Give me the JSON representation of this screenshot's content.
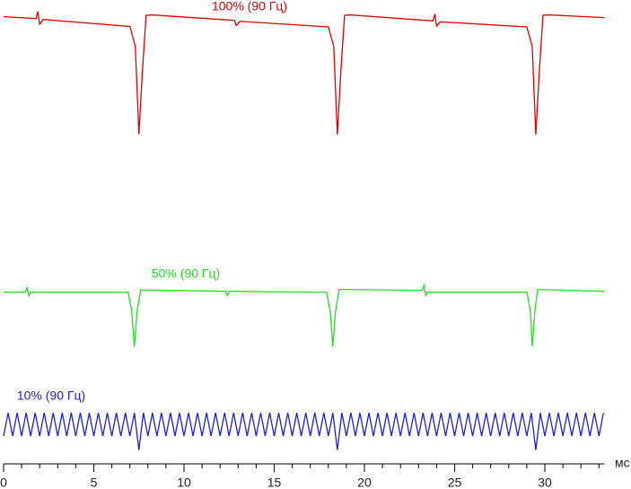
{
  "chart_data": {
    "type": "line",
    "xlabel": "мс",
    "xlim": [
      0,
      33.3
    ],
    "ylim": [
      0,
      100
    ],
    "xticks": [
      0,
      5,
      10,
      15,
      20,
      25,
      30
    ],
    "series": [
      {
        "name": "100% (90 Гц)",
        "color": "#e00000",
        "x": [
          0,
          1.8,
          1.9,
          2.0,
          2.2,
          7.0,
          7.3,
          7.5,
          7.7,
          7.9,
          8.2,
          12.8,
          12.9,
          13.1,
          18.0,
          18.3,
          18.5,
          18.7,
          18.9,
          19.2,
          23.8,
          23.9,
          24.0,
          24.2,
          29.0,
          29.3,
          29.5,
          29.7,
          29.9,
          30.2,
          33.3
        ],
        "values": [
          96.4,
          96.0,
          97.5,
          94.8,
          95.8,
          94.3,
          90,
          71.1,
          85,
          96.7,
          96.8,
          95.6,
          94.5,
          95.4,
          94.2,
          90,
          71,
          85,
          96.7,
          96.8,
          95.5,
          97,
          94.4,
          95.3,
          94.2,
          90,
          71,
          85,
          96.7,
          96.8,
          96.2
        ]
      },
      {
        "name": "50% (90 Гц)",
        "color": "#20e020",
        "x": [
          0,
          1.2,
          1.3,
          1.4,
          1.5,
          6.9,
          7.1,
          7.25,
          7.4,
          7.6,
          12.3,
          12.4,
          12.5,
          17.9,
          18.1,
          18.25,
          18.4,
          18.6,
          23.2,
          23.3,
          23.4,
          23.5,
          29.0,
          29.2,
          29.3,
          29.45,
          29.6,
          33.3
        ],
        "values": [
          37,
          37,
          38,
          36.2,
          37,
          37,
          33,
          25.3,
          33,
          37.5,
          37.2,
          36.3,
          37.2,
          37,
          33,
          25.3,
          33,
          37.6,
          37.4,
          38.5,
          36.3,
          37,
          37,
          33,
          25.3,
          33,
          37.6,
          37.2
        ]
      },
      {
        "name": "10% (90 Гц)",
        "color": "#2020d0",
        "x": [
          0,
          0.25,
          0.5,
          0.75,
          1,
          1.25,
          1.5,
          1.75,
          2,
          2.25,
          2.5,
          2.75,
          3,
          3.25,
          3.5,
          3.75,
          4,
          4.25,
          4.5,
          4.75,
          5,
          5.25,
          5.5,
          5.75,
          6,
          6.25,
          6.5,
          6.75,
          7,
          7.25,
          7.5,
          7.75,
          8,
          8.25,
          8.5,
          8.75,
          9,
          9.25,
          9.5,
          9.75,
          10,
          10.25,
          10.5,
          10.75,
          11,
          11.25,
          11.5,
          11.75,
          12,
          12.25,
          12.5,
          12.75,
          13,
          13.25,
          13.5,
          13.75,
          14,
          14.25,
          14.5,
          14.75,
          15,
          15.25,
          15.5,
          15.75,
          16,
          16.25,
          16.5,
          16.75,
          17,
          17.25,
          17.5,
          17.75,
          18,
          18.25,
          18.5,
          18.75,
          19,
          19.25,
          19.5,
          19.75,
          20,
          20.25,
          20.5,
          20.75,
          21,
          21.25,
          21.5,
          21.75,
          22,
          22.25,
          22.5,
          22.75,
          23,
          23.25,
          23.5,
          23.75,
          24,
          24.25,
          24.5,
          24.75,
          25,
          25.25,
          25.5,
          25.75,
          26,
          26.25,
          26.5,
          26.75,
          27,
          27.25,
          27.5,
          27.75,
          28,
          28.25,
          28.5,
          28.75,
          29,
          29.25,
          29.5,
          29.75,
          30,
          30.25,
          30.5,
          30.75,
          31,
          31.25,
          31.5,
          31.75,
          32,
          32.25,
          32.5,
          32.75,
          33,
          33.25
        ],
        "values": [
          6,
          11,
          6,
          11,
          6,
          11,
          6,
          11,
          6,
          11,
          6,
          11,
          6,
          11,
          6,
          11,
          6,
          11,
          6,
          11,
          6,
          11,
          6,
          11,
          6,
          11,
          6,
          11,
          6,
          11,
          3,
          11,
          6,
          11,
          6,
          11,
          6,
          11,
          6,
          11,
          6,
          11,
          6,
          11,
          6,
          11,
          6,
          11,
          6,
          11,
          6,
          11,
          6,
          11,
          6,
          11,
          6,
          11,
          6,
          11,
          6,
          11,
          6,
          11,
          6,
          11,
          6,
          11,
          6,
          11,
          6,
          11,
          6,
          11,
          3,
          11,
          6,
          11,
          6,
          11,
          6,
          11,
          6,
          11,
          6,
          11,
          6,
          11,
          6,
          11,
          6,
          11,
          6,
          11,
          6,
          11,
          6,
          11,
          6,
          11,
          6,
          11,
          6,
          11,
          6,
          11,
          6,
          11,
          6,
          11,
          6,
          11,
          6,
          11,
          6,
          11,
          6,
          11,
          3,
          11,
          6,
          11,
          6,
          11,
          6,
          11,
          6,
          11,
          6,
          11,
          6,
          11,
          6,
          11
        ]
      }
    ]
  }
}
